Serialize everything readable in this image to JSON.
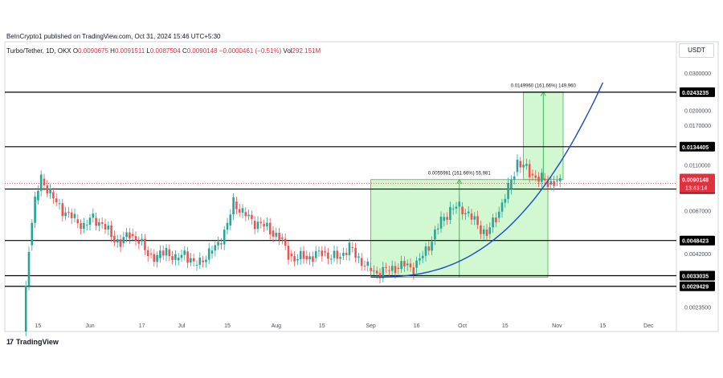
{
  "header": {
    "published": "BeInCrypto1 published on TradingView.com, Oct 31, 2024 15:46 UTC+5:30",
    "symbol": "Turbo/Tether, 1D, OKX",
    "o_label": "O",
    "o": "0.0090675",
    "h_label": "H",
    "h": "0.0091511",
    "l_label": "L",
    "l": "0.0087504",
    "c_label": "C",
    "c": "0.0090148",
    "change": "−0.0000461 (−0.51%)",
    "vol_label": "Vol",
    "vol": "292.151M"
  },
  "currency": "USDT",
  "logo": "TradingView",
  "colors": {
    "up": "#26a69a",
    "down": "#ef5350",
    "curve": "#1848cc",
    "zone": "#9cf09a",
    "price": "#e0323e"
  },
  "chart_data": {
    "type": "candlestick",
    "scale": "log",
    "ylim": [
      0.0018,
      0.036
    ],
    "x_tick_labels": [
      "15",
      "Jun",
      "17",
      "Jul",
      "15",
      "Aug",
      "15",
      "Sep",
      "16",
      "Oct",
      "15",
      "Nov",
      "15",
      "Dec"
    ],
    "x_ticks": [
      -17,
      0,
      17,
      30,
      45,
      61,
      76,
      92,
      107,
      122,
      136,
      153,
      168,
      183
    ],
    "y_tick_labels": [
      "0.0300000",
      "0.0200000",
      "0.0170000",
      "0.0110000",
      "0.0067000",
      "0.0042000",
      "0.0023500"
    ],
    "y_ticks": [
      0.03,
      0.02,
      0.017,
      0.011,
      0.0067,
      0.0042,
      0.00235
    ],
    "levels": [
      {
        "label": "0.0243235",
        "value": 0.0243235
      },
      {
        "label": "0.0134405",
        "value": 0.0134405
      },
      {
        "label": "0.0084793",
        "value": 0.0084793
      },
      {
        "label": "0.0048423",
        "value": 0.0048423
      },
      {
        "label": "0.0033035",
        "value": 0.0033035
      },
      {
        "label": "0.0029429",
        "value": 0.0029429
      }
    ],
    "last_price": {
      "label": "0.0090148",
      "value": 0.0090148,
      "countdown": "13:43:14"
    },
    "measurements": [
      {
        "label": "0.0055981 (161.66%) 55,981",
        "x_start": 92,
        "x_end": 150,
        "y_from": 0.00325,
        "y_to": 0.0094
      },
      {
        "label": "0.0149960 (161.66%) 149,960",
        "x_start": 142,
        "x_end": 155,
        "y_from": 0.0094,
        "y_to": 0.0244
      }
    ],
    "curve": {
      "x_start": 92,
      "x_end": 168,
      "y_start": 0.00325,
      "y_end": 0.027
    },
    "series_points": [
      [
        -22,
        0.0018
      ],
      [
        -20,
        0.0046
      ],
      [
        -18,
        0.0075
      ],
      [
        -16,
        0.0095
      ],
      [
        -13,
        0.0082
      ],
      [
        -11,
        0.0072
      ],
      [
        -8,
        0.0066
      ],
      [
        -5,
        0.0061
      ],
      [
        -2,
        0.0057
      ],
      [
        1,
        0.0062
      ],
      [
        4,
        0.0058
      ],
      [
        7,
        0.0051
      ],
      [
        10,
        0.0047
      ],
      [
        13,
        0.0052
      ],
      [
        16,
        0.0048
      ],
      [
        19,
        0.0042
      ],
      [
        22,
        0.004
      ],
      [
        25,
        0.0044
      ],
      [
        28,
        0.0039
      ],
      [
        31,
        0.0043
      ],
      [
        34,
        0.0037
      ],
      [
        36,
        0.0039
      ],
      [
        39,
        0.0042
      ],
      [
        42,
        0.0047
      ],
      [
        45,
        0.0057
      ],
      [
        47,
        0.0074
      ],
      [
        50,
        0.0066
      ],
      [
        53,
        0.006
      ],
      [
        56,
        0.0058
      ],
      [
        59,
        0.0054
      ],
      [
        62,
        0.005
      ],
      [
        65,
        0.0042
      ],
      [
        67,
        0.0039
      ],
      [
        70,
        0.0041
      ],
      [
        73,
        0.004
      ],
      [
        76,
        0.0043
      ],
      [
        79,
        0.004
      ],
      [
        82,
        0.0041
      ],
      [
        85,
        0.0045
      ],
      [
        88,
        0.004
      ],
      [
        91,
        0.0036
      ],
      [
        94,
        0.0034
      ],
      [
        97,
        0.0035
      ],
      [
        100,
        0.0036
      ],
      [
        103,
        0.0037
      ],
      [
        106,
        0.0036
      ],
      [
        109,
        0.0041
      ],
      [
        112,
        0.0049
      ],
      [
        115,
        0.006
      ],
      [
        118,
        0.0068
      ],
      [
        121,
        0.007
      ],
      [
        124,
        0.0065
      ],
      [
        127,
        0.0057
      ],
      [
        130,
        0.0052
      ],
      [
        133,
        0.0062
      ],
      [
        135,
        0.0073
      ],
      [
        137,
        0.0085
      ],
      [
        139,
        0.0102
      ],
      [
        140,
        0.0115
      ],
      [
        142,
        0.0109
      ],
      [
        144,
        0.01
      ],
      [
        146,
        0.0097
      ],
      [
        148,
        0.0095
      ],
      [
        150,
        0.0089
      ],
      [
        152,
        0.0093
      ],
      [
        154,
        0.009
      ]
    ]
  }
}
